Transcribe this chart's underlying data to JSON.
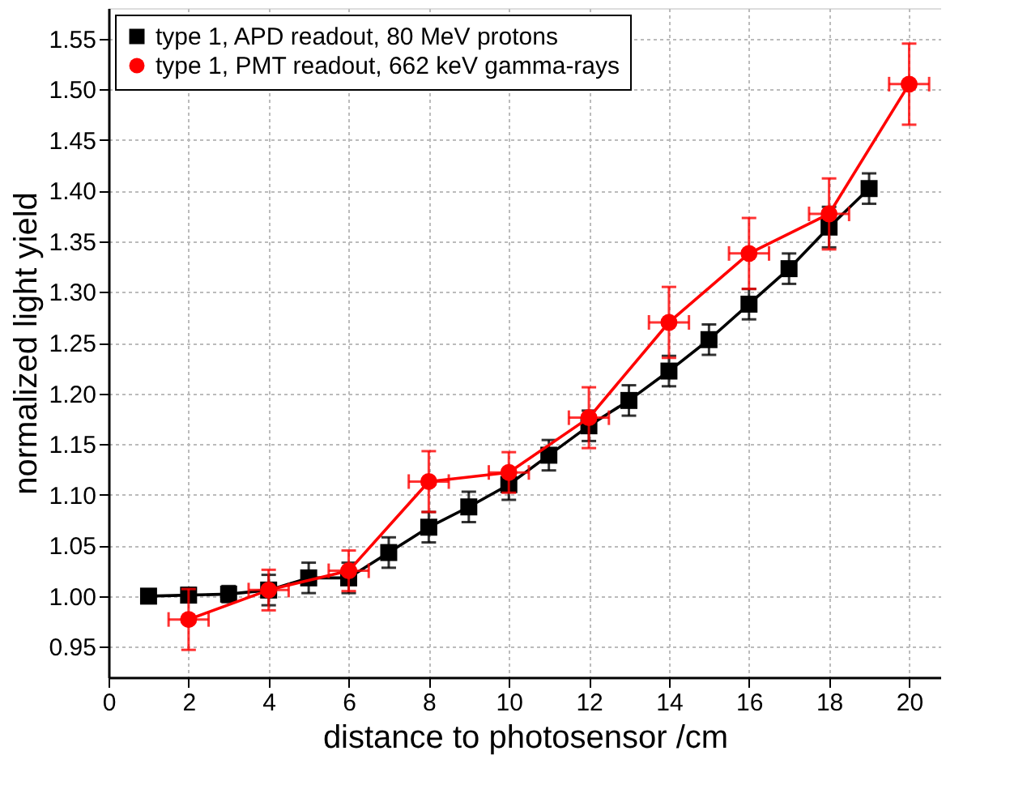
{
  "chart_data": {
    "type": "line",
    "xlabel": "distance to photosensor /cm",
    "ylabel": "normalized light yield",
    "xlim": [
      0,
      20.8
    ],
    "xticks": [
      0,
      2,
      4,
      6,
      8,
      10,
      12,
      14,
      16,
      18,
      20
    ],
    "ylim": [
      0.92,
      1.58
    ],
    "yticks": [
      {
        "value": 0.95,
        "label": "0.95"
      },
      {
        "value": 1.0,
        "label": "1.00"
      },
      {
        "value": 1.05,
        "label": "1.05"
      },
      {
        "value": 1.1,
        "label": "1.10"
      },
      {
        "value": 1.15,
        "label": "1.15"
      },
      {
        "value": 1.2,
        "label": "1.20"
      },
      {
        "value": 1.25,
        "label": "1.25"
      },
      {
        "value": 1.3,
        "label": "1.30"
      },
      {
        "value": 1.35,
        "label": "1.35"
      },
      {
        "value": 1.4,
        "label": "1.40"
      },
      {
        "value": 1.45,
        "label": "1.45"
      },
      {
        "value": 1.5,
        "label": "1.50"
      },
      {
        "value": 1.55,
        "label": "1.55"
      }
    ],
    "grid": true,
    "legend": "top left",
    "line_style": "solid",
    "series": [
      {
        "name": "type 1, APD readout, 80 MeV protons",
        "color": "#000000",
        "marker": "square",
        "x": [
          1,
          2,
          3,
          4,
          5,
          6,
          7,
          8,
          9,
          10,
          11,
          12,
          13,
          14,
          15,
          16,
          17,
          18,
          19
        ],
        "values": [
          1.0,
          1.001,
          1.002,
          1.006,
          1.018,
          1.018,
          1.043,
          1.068,
          1.088,
          1.11,
          1.139,
          1.168,
          1.193,
          1.222,
          1.253,
          1.288,
          1.323,
          1.364,
          1.402
        ],
        "errors": [
          null,
          0.007,
          0.008,
          0.015,
          0.015,
          0.015,
          0.015,
          0.015,
          0.015,
          0.015,
          0.015,
          0.015,
          0.015,
          0.015,
          0.015,
          0.015,
          0.015,
          0.02,
          0.015
        ]
      },
      {
        "name": "type 1, PMT readout, 662 keV gamma-rays",
        "color": "#ff0000",
        "marker": "circle",
        "x": [
          2,
          4,
          6,
          8,
          10,
          12,
          14,
          16,
          18,
          20
        ],
        "values": [
          0.977,
          1.006,
          1.025,
          1.113,
          1.122,
          1.176,
          1.27,
          1.338,
          1.377,
          1.505
        ],
        "errors": [
          0.03,
          0.02,
          0.02,
          0.03,
          0.02,
          0.03,
          0.035,
          0.035,
          0.035,
          0.04
        ],
        "xerrors": [
          0.5,
          0.5,
          0.5,
          0.5,
          0.5,
          0.5,
          0.5,
          0.5,
          0.5,
          0.5
        ]
      }
    ]
  }
}
